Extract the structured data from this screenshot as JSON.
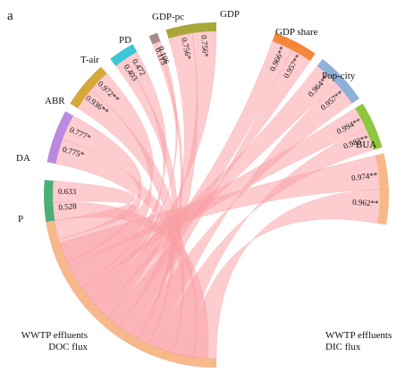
{
  "panel_label": "a",
  "chart_data": {
    "type": "chord",
    "targets": [
      {
        "name": "WWTP effluents\nDOC flux",
        "color": "#ee3aee"
      },
      {
        "name": "WWTP effluents\nDIC flux",
        "color": "#f7b98a"
      }
    ],
    "sources": [
      {
        "name": "BUA",
        "color": "#f7b98a",
        "values": [
          "0.974**",
          "0.962**"
        ]
      },
      {
        "name": "Pop-city",
        "color": "#8dc63f",
        "values": [
          "0.994**",
          "0.983**"
        ]
      },
      {
        "name": "GDP share",
        "color": "#8fb0d9",
        "values": [
          "0.964**",
          "0.957**"
        ]
      },
      {
        "name": "GDP",
        "color": "#f4873a",
        "values": [
          "0.966**",
          "0.957**"
        ]
      },
      {
        "name": "GDP-pc",
        "color": "#a8a83a",
        "values": [
          "0.756*",
          "0.756*"
        ]
      },
      {
        "name": "PD",
        "color": "#a98a8a",
        "values": [
          "0.115",
          "0.106"
        ]
      },
      {
        "name": "T-air",
        "color": "#3cc6d6",
        "values": [
          "0.403",
          "0.472"
        ]
      },
      {
        "name": "ABR",
        "color": "#d6a83a",
        "values": [
          "0.936**",
          "0.972**"
        ]
      },
      {
        "name": "DA",
        "color": "#b98ae0",
        "values": [
          "0.775*",
          "0.777*"
        ]
      },
      {
        "name": "P",
        "color": "#4caf7a",
        "values": [
          "0.528",
          "0.633"
        ]
      }
    ],
    "ribbon_color": "#f9a3a8"
  }
}
